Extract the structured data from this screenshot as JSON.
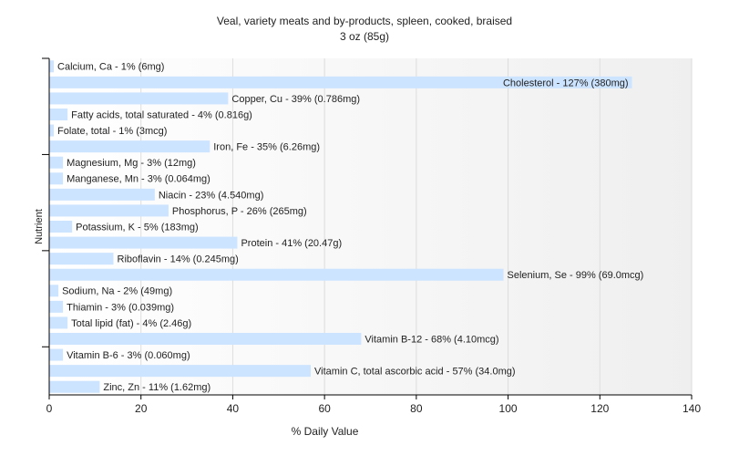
{
  "chart_data": {
    "type": "bar",
    "orientation": "horizontal",
    "title": "Veal, variety meats and by-products, spleen, cooked, braised",
    "subtitle": "3 oz (85g)",
    "xlabel": "% Daily Value",
    "ylabel": "Nutrient",
    "xlim": [
      0,
      140
    ],
    "xticks": [
      0,
      20,
      40,
      60,
      80,
      100,
      120,
      140
    ],
    "grid": true,
    "bar_color": "#cce4ff",
    "categories": [
      "Calcium, Ca",
      "Cholesterol",
      "Copper, Cu",
      "Fatty acids, total saturated",
      "Folate, total",
      "Iron, Fe",
      "Magnesium, Mg",
      "Manganese, Mn",
      "Niacin",
      "Phosphorus, P",
      "Potassium, K",
      "Protein",
      "Riboflavin",
      "Selenium, Se",
      "Sodium, Na",
      "Thiamin",
      "Total lipid (fat)",
      "Vitamin B-12",
      "Vitamin B-6",
      "Vitamin C, total ascorbic acid",
      "Zinc, Zn"
    ],
    "values": [
      1,
      127,
      39,
      4,
      1,
      35,
      3,
      3,
      23,
      26,
      5,
      41,
      14,
      99,
      2,
      3,
      4,
      68,
      3,
      57,
      11
    ],
    "labels": [
      "Calcium, Ca - 1% (6mg)",
      "Cholesterol - 127% (380mg)",
      "Copper, Cu - 39% (0.786mg)",
      "Fatty acids, total saturated - 4% (0.816g)",
      "Folate, total - 1% (3mcg)",
      "Iron, Fe - 35% (6.26mg)",
      "Magnesium, Mg - 3% (12mg)",
      "Manganese, Mn - 3% (0.064mg)",
      "Niacin - 23% (4.540mg)",
      "Phosphorus, P - 26% (265mg)",
      "Potassium, K - 5% (183mg)",
      "Protein - 41% (20.47g)",
      "Riboflavin - 14% (0.245mg)",
      "Selenium, Se - 99% (69.0mcg)",
      "Sodium, Na - 2% (49mg)",
      "Thiamin - 3% (0.039mg)",
      "Total lipid (fat) - 4% (2.46g)",
      "Vitamin B-12 - 68% (4.10mcg)",
      "Vitamin B-6 - 3% (0.060mg)",
      "Vitamin C, total ascorbic acid - 57% (34.0mg)",
      "Zinc, Zn - 11% (1.62mg)"
    ]
  }
}
